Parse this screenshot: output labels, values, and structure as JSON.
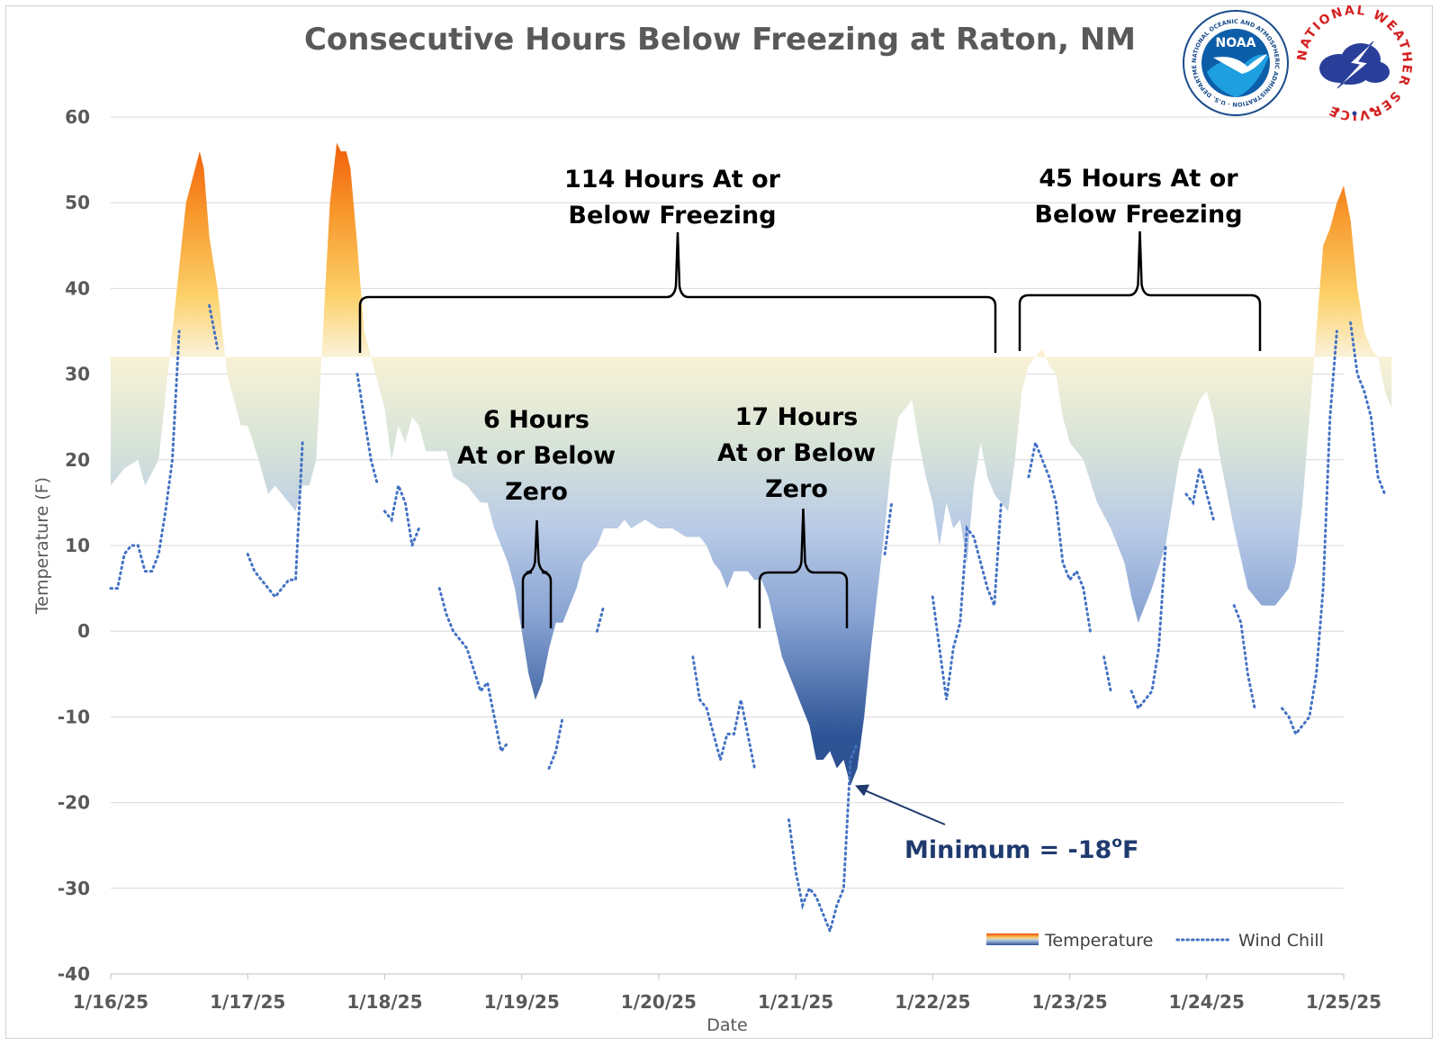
{
  "chart_data": {
    "type": "area",
    "title": "Consecutive Hours Below Freezing at Raton, NM",
    "xlabel": "Date",
    "ylabel": "Temperature  (F)",
    "ylim": [
      -40,
      60
    ],
    "yticks": [
      60,
      50,
      40,
      30,
      20,
      10,
      0,
      -10,
      -20,
      -30,
      -40
    ],
    "xticks": [
      "1/16/25",
      "1/17/25",
      "1/18/25",
      "1/19/25",
      "1/20/25",
      "1/21/25",
      "1/22/25",
      "1/23/25",
      "1/24/25",
      "1/25/25"
    ],
    "xlim_days": [
      0,
      9
    ],
    "freezing_line": 32,
    "grid": true,
    "legend_position": "bottom-right",
    "series": [
      {
        "name": "Temperature",
        "style": "area-gradient",
        "points": [
          [
            0.0,
            17
          ],
          [
            0.1,
            19
          ],
          [
            0.2,
            20
          ],
          [
            0.25,
            17
          ],
          [
            0.35,
            20
          ],
          [
            0.45,
            35
          ],
          [
            0.55,
            50
          ],
          [
            0.65,
            56
          ],
          [
            0.68,
            54
          ],
          [
            0.72,
            46
          ],
          [
            0.78,
            40
          ],
          [
            0.85,
            30
          ],
          [
            0.9,
            27
          ],
          [
            0.95,
            24
          ],
          [
            1.0,
            24
          ],
          [
            1.08,
            20
          ],
          [
            1.15,
            16
          ],
          [
            1.2,
            17
          ],
          [
            1.25,
            16
          ],
          [
            1.35,
            14
          ],
          [
            1.4,
            17
          ],
          [
            1.45,
            17
          ],
          [
            1.5,
            20
          ],
          [
            1.55,
            35
          ],
          [
            1.6,
            50
          ],
          [
            1.65,
            57
          ],
          [
            1.68,
            56
          ],
          [
            1.72,
            56
          ],
          [
            1.75,
            54
          ],
          [
            1.8,
            45
          ],
          [
            1.85,
            35
          ],
          [
            1.9,
            32
          ],
          [
            1.95,
            29
          ],
          [
            2.0,
            26
          ],
          [
            2.05,
            20
          ],
          [
            2.1,
            24
          ],
          [
            2.15,
            22
          ],
          [
            2.2,
            25
          ],
          [
            2.25,
            24
          ],
          [
            2.3,
            21
          ],
          [
            2.45,
            21
          ],
          [
            2.5,
            18
          ],
          [
            2.6,
            17
          ],
          [
            2.7,
            15
          ],
          [
            2.75,
            15
          ],
          [
            2.8,
            12
          ],
          [
            2.9,
            8
          ],
          [
            2.95,
            5
          ],
          [
            3.0,
            0
          ],
          [
            3.05,
            -5
          ],
          [
            3.1,
            -8
          ],
          [
            3.15,
            -6
          ],
          [
            3.2,
            -2
          ],
          [
            3.25,
            1
          ],
          [
            3.3,
            1
          ],
          [
            3.35,
            3
          ],
          [
            3.4,
            5
          ],
          [
            3.45,
            8
          ],
          [
            3.55,
            10
          ],
          [
            3.6,
            12
          ],
          [
            3.7,
            12
          ],
          [
            3.75,
            13
          ],
          [
            3.8,
            12
          ],
          [
            3.9,
            13
          ],
          [
            4.0,
            12
          ],
          [
            4.1,
            12
          ],
          [
            4.2,
            11
          ],
          [
            4.3,
            11
          ],
          [
            4.35,
            10
          ],
          [
            4.4,
            8
          ],
          [
            4.45,
            7
          ],
          [
            4.5,
            5
          ],
          [
            4.55,
            7
          ],
          [
            4.65,
            7
          ],
          [
            4.7,
            6
          ],
          [
            4.75,
            6
          ],
          [
            4.8,
            4
          ],
          [
            4.9,
            -3
          ],
          [
            5.0,
            -7
          ],
          [
            5.05,
            -9
          ],
          [
            5.1,
            -11
          ],
          [
            5.15,
            -15
          ],
          [
            5.2,
            -15
          ],
          [
            5.25,
            -14
          ],
          [
            5.3,
            -16
          ],
          [
            5.35,
            -15
          ],
          [
            5.4,
            -18
          ],
          [
            5.45,
            -16
          ],
          [
            5.5,
            -10
          ],
          [
            5.55,
            -2
          ],
          [
            5.6,
            5
          ],
          [
            5.65,
            12
          ],
          [
            5.7,
            20
          ],
          [
            5.75,
            25
          ],
          [
            5.85,
            27
          ],
          [
            5.9,
            22
          ],
          [
            5.95,
            18
          ],
          [
            6.0,
            15
          ],
          [
            6.05,
            10
          ],
          [
            6.1,
            15
          ],
          [
            6.15,
            12
          ],
          [
            6.2,
            13
          ],
          [
            6.25,
            8
          ],
          [
            6.3,
            17
          ],
          [
            6.35,
            22
          ],
          [
            6.4,
            18
          ],
          [
            6.45,
            16
          ],
          [
            6.5,
            15
          ],
          [
            6.55,
            14
          ],
          [
            6.6,
            20
          ],
          [
            6.65,
            28
          ],
          [
            6.7,
            31
          ],
          [
            6.75,
            32
          ],
          [
            6.8,
            33
          ],
          [
            6.85,
            31
          ],
          [
            6.9,
            30
          ],
          [
            6.95,
            25
          ],
          [
            7.0,
            22
          ],
          [
            7.1,
            20
          ],
          [
            7.2,
            15
          ],
          [
            7.3,
            12
          ],
          [
            7.35,
            10
          ],
          [
            7.4,
            8
          ],
          [
            7.45,
            4
          ],
          [
            7.5,
            1
          ],
          [
            7.55,
            3
          ],
          [
            7.6,
            5
          ],
          [
            7.7,
            10
          ],
          [
            7.8,
            20
          ],
          [
            7.9,
            25
          ],
          [
            7.95,
            27
          ],
          [
            8.0,
            28
          ],
          [
            8.05,
            25
          ],
          [
            8.1,
            20
          ],
          [
            8.2,
            12
          ],
          [
            8.3,
            5
          ],
          [
            8.4,
            3
          ],
          [
            8.5,
            3
          ],
          [
            8.6,
            5
          ],
          [
            8.65,
            8
          ],
          [
            8.7,
            15
          ],
          [
            8.75,
            25
          ],
          [
            8.8,
            35
          ],
          [
            8.85,
            45
          ],
          [
            8.9,
            47
          ],
          [
            8.95,
            50
          ],
          [
            9.0,
            52
          ],
          [
            9.05,
            48
          ],
          [
            9.1,
            40
          ],
          [
            9.15,
            35
          ],
          [
            9.2,
            33
          ],
          [
            9.25,
            32
          ],
          [
            9.3,
            28
          ],
          [
            9.35,
            26
          ]
        ]
      },
      {
        "name": "Wind Chill",
        "style": "dotted",
        "segments": [
          [
            [
              0.0,
              5
            ],
            [
              0.05,
              5
            ],
            [
              0.1,
              9
            ],
            [
              0.15,
              10
            ],
            [
              0.2,
              10
            ],
            [
              0.25,
              7
            ],
            [
              0.3,
              7
            ],
            [
              0.35,
              9
            ],
            [
              0.4,
              14
            ],
            [
              0.45,
              20
            ],
            [
              0.5,
              35
            ]
          ],
          [
            [
              0.72,
              38
            ],
            [
              0.78,
              33
            ]
          ],
          [
            [
              1.0,
              9
            ],
            [
              1.05,
              7
            ],
            [
              1.1,
              6
            ],
            [
              1.15,
              5
            ],
            [
              1.2,
              4
            ],
            [
              1.25,
              5
            ],
            [
              1.3,
              6
            ],
            [
              1.35,
              6
            ],
            [
              1.4,
              22
            ]
          ],
          [
            [
              1.8,
              30
            ],
            [
              1.85,
              25
            ],
            [
              1.9,
              20
            ],
            [
              1.95,
              17
            ]
          ],
          [
            [
              2.0,
              14
            ],
            [
              2.05,
              13
            ],
            [
              2.1,
              17
            ],
            [
              2.15,
              15
            ],
            [
              2.2,
              10
            ],
            [
              2.25,
              12
            ]
          ],
          [
            [
              2.4,
              5
            ],
            [
              2.45,
              2
            ],
            [
              2.5,
              0
            ],
            [
              2.6,
              -2
            ],
            [
              2.7,
              -7
            ],
            [
              2.75,
              -6
            ],
            [
              2.8,
              -10
            ],
            [
              2.85,
              -14
            ],
            [
              2.9,
              -13
            ]
          ],
          [
            [
              3.2,
              -16
            ],
            [
              3.25,
              -14
            ],
            [
              3.3,
              -10
            ]
          ],
          [
            [
              3.55,
              0
            ],
            [
              3.6,
              3
            ]
          ],
          [
            [
              4.25,
              -3
            ],
            [
              4.3,
              -8
            ],
            [
              4.35,
              -9
            ],
            [
              4.4,
              -12
            ],
            [
              4.45,
              -15
            ],
            [
              4.5,
              -12
            ],
            [
              4.55,
              -12
            ],
            [
              4.6,
              -8
            ],
            [
              4.65,
              -12
            ],
            [
              4.7,
              -16
            ]
          ],
          [
            [
              4.95,
              -22
            ],
            [
              5.0,
              -28
            ],
            [
              5.05,
              -32
            ],
            [
              5.1,
              -30
            ],
            [
              5.15,
              -31
            ],
            [
              5.2,
              -33
            ],
            [
              5.25,
              -35
            ],
            [
              5.3,
              -32
            ],
            [
              5.35,
              -30
            ],
            [
              5.4,
              -15
            ],
            [
              5.45,
              -13
            ]
          ],
          [
            [
              5.65,
              9
            ],
            [
              5.7,
              15
            ]
          ],
          [
            [
              6.0,
              4
            ],
            [
              6.05,
              -2
            ],
            [
              6.1,
              -8
            ],
            [
              6.15,
              -2
            ],
            [
              6.2,
              1
            ],
            [
              6.25,
              12
            ],
            [
              6.3,
              11
            ],
            [
              6.35,
              8
            ],
            [
              6.4,
              5
            ],
            [
              6.45,
              3
            ],
            [
              6.5,
              15
            ]
          ],
          [
            [
              6.7,
              18
            ],
            [
              6.75,
              22
            ],
            [
              6.8,
              20
            ],
            [
              6.85,
              18
            ],
            [
              6.9,
              15
            ],
            [
              6.95,
              8
            ],
            [
              7.0,
              6
            ],
            [
              7.05,
              7
            ],
            [
              7.1,
              5
            ],
            [
              7.15,
              0
            ]
          ],
          [
            [
              7.25,
              -3
            ],
            [
              7.3,
              -7
            ]
          ],
          [
            [
              7.45,
              -7
            ],
            [
              7.5,
              -9
            ],
            [
              7.55,
              -8
            ],
            [
              7.6,
              -7
            ],
            [
              7.65,
              -2
            ],
            [
              7.7,
              10
            ]
          ],
          [
            [
              7.85,
              16
            ],
            [
              7.9,
              15
            ],
            [
              7.95,
              19
            ],
            [
              8.0,
              16
            ],
            [
              8.05,
              13
            ]
          ],
          [
            [
              8.2,
              3
            ],
            [
              8.25,
              1
            ],
            [
              8.3,
              -5
            ],
            [
              8.35,
              -9
            ]
          ],
          [
            [
              8.55,
              -9
            ],
            [
              8.6,
              -10
            ],
            [
              8.65,
              -12
            ],
            [
              8.7,
              -11
            ],
            [
              8.75,
              -10
            ],
            [
              8.8,
              -5
            ],
            [
              8.85,
              5
            ],
            [
              8.9,
              25
            ],
            [
              8.95,
              35
            ]
          ],
          [
            [
              9.05,
              36
            ],
            [
              9.1,
              30
            ],
            [
              9.15,
              28
            ],
            [
              9.2,
              25
            ],
            [
              9.25,
              18
            ],
            [
              9.3,
              16
            ]
          ]
        ]
      }
    ],
    "annotations": [
      {
        "lines": [
          "114 Hours At or",
          "Below Freezing"
        ]
      },
      {
        "lines": [
          "45 Hours At or",
          "Below Freezing"
        ]
      },
      {
        "lines": [
          "6 Hours",
          "At or Below",
          "Zero"
        ]
      },
      {
        "lines": [
          "17 Hours",
          "At or Below",
          "Zero"
        ]
      },
      {
        "text": "Minimum = -18",
        "superscript": "o",
        "suffix": "F"
      }
    ],
    "legend": [
      {
        "label": "Temperature"
      },
      {
        "label": "Wind Chill"
      }
    ],
    "colors": {
      "warm_top": "#f04a00",
      "warm_mid": "#fccf60",
      "freezing": "#f9f1d8",
      "cold_mid": "#b9cbe6",
      "cold_bottom": "#2f5597",
      "wind_chill": "#4472c4",
      "grid": "#d9d9d9",
      "min_text": "#1f3a6e"
    }
  },
  "logos": {
    "noaa": {
      "label": "NOAA",
      "ring_text": "NATIONAL OCEANIC AND ATMOSPHERIC ADMINISTRATION · U.S. DEPARTMENT OF COMMERCE"
    },
    "nws": {
      "ring_text": "NATIONAL WEATHER SERVICE"
    }
  }
}
